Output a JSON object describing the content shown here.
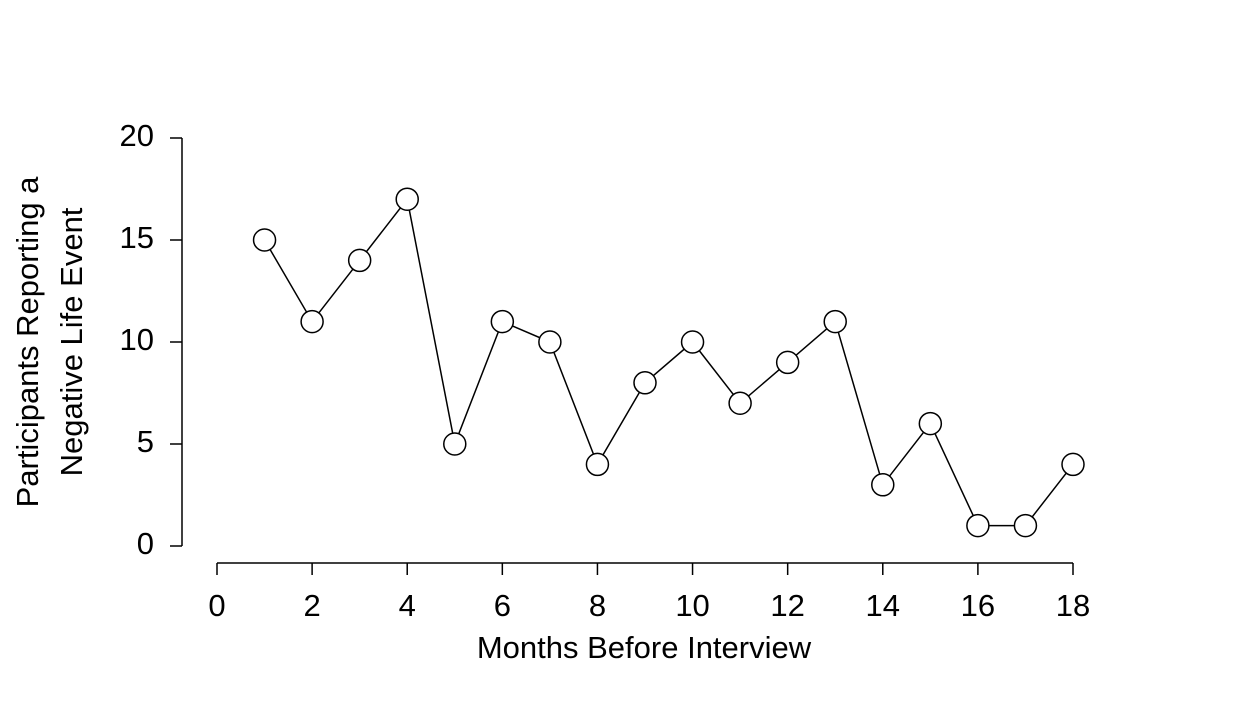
{
  "chart_data": {
    "type": "line",
    "xlabel": "Months Before Interview",
    "ylabel": [
      "Participants Reporting a",
      "Negative Life Event"
    ],
    "x": [
      1,
      2,
      3,
      4,
      5,
      6,
      7,
      8,
      9,
      10,
      11,
      12,
      13,
      14,
      15,
      16,
      17,
      18
    ],
    "values": [
      15,
      11,
      14,
      17,
      5,
      11,
      10,
      4,
      8,
      10,
      7,
      9,
      11,
      3,
      6,
      1,
      1,
      4
    ],
    "color": "#000000",
    "xlim": [
      0,
      18
    ],
    "xticks": [
      0,
      2,
      4,
      6,
      8,
      10,
      12,
      14,
      16,
      18
    ],
    "ylim": [
      0,
      20
    ],
    "yticks": [
      0,
      5,
      10,
      15,
      20
    ]
  }
}
